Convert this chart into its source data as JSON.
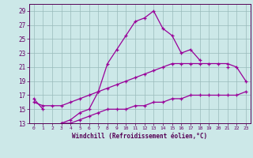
{
  "xlabel": "Windchill (Refroidissement éolien,°C)",
  "background_color": "#cce8e8",
  "line_color": "#990099",
  "grid_color": "#99bbbb",
  "hours": [
    0,
    1,
    2,
    3,
    4,
    5,
    6,
    7,
    8,
    9,
    10,
    11,
    12,
    13,
    14,
    15,
    16,
    17,
    18,
    19,
    20,
    21,
    22,
    23
  ],
  "line1": [
    16.5,
    15.0,
    null,
    13.0,
    13.5,
    14.5,
    15.0,
    17.5,
    21.5,
    23.5,
    25.5,
    27.5,
    28.0,
    29.0,
    26.5,
    25.5,
    23.0,
    23.5,
    22.0,
    null,
    null,
    21.0,
    null,
    null
  ],
  "line2": [
    16.0,
    15.5,
    15.5,
    15.5,
    16.0,
    16.5,
    17.0,
    17.5,
    18.0,
    18.5,
    19.0,
    19.5,
    20.0,
    20.5,
    21.0,
    21.5,
    21.5,
    21.5,
    21.5,
    21.5,
    21.5,
    21.5,
    21.0,
    19.0
  ],
  "line3": [
    null,
    null,
    null,
    13.0,
    13.0,
    13.5,
    14.0,
    14.5,
    15.0,
    15.0,
    15.0,
    15.5,
    15.5,
    16.0,
    16.0,
    16.5,
    16.5,
    17.0,
    17.0,
    17.0,
    17.0,
    17.0,
    17.0,
    17.5
  ],
  "ylim": [
    13,
    30
  ],
  "yticks": [
    13,
    15,
    17,
    19,
    21,
    23,
    25,
    27,
    29
  ],
  "xlim": [
    -0.5,
    23.5
  ],
  "xticks": [
    0,
    1,
    2,
    3,
    4,
    5,
    6,
    7,
    8,
    9,
    10,
    11,
    12,
    13,
    14,
    15,
    16,
    17,
    18,
    19,
    20,
    21,
    22,
    23
  ]
}
